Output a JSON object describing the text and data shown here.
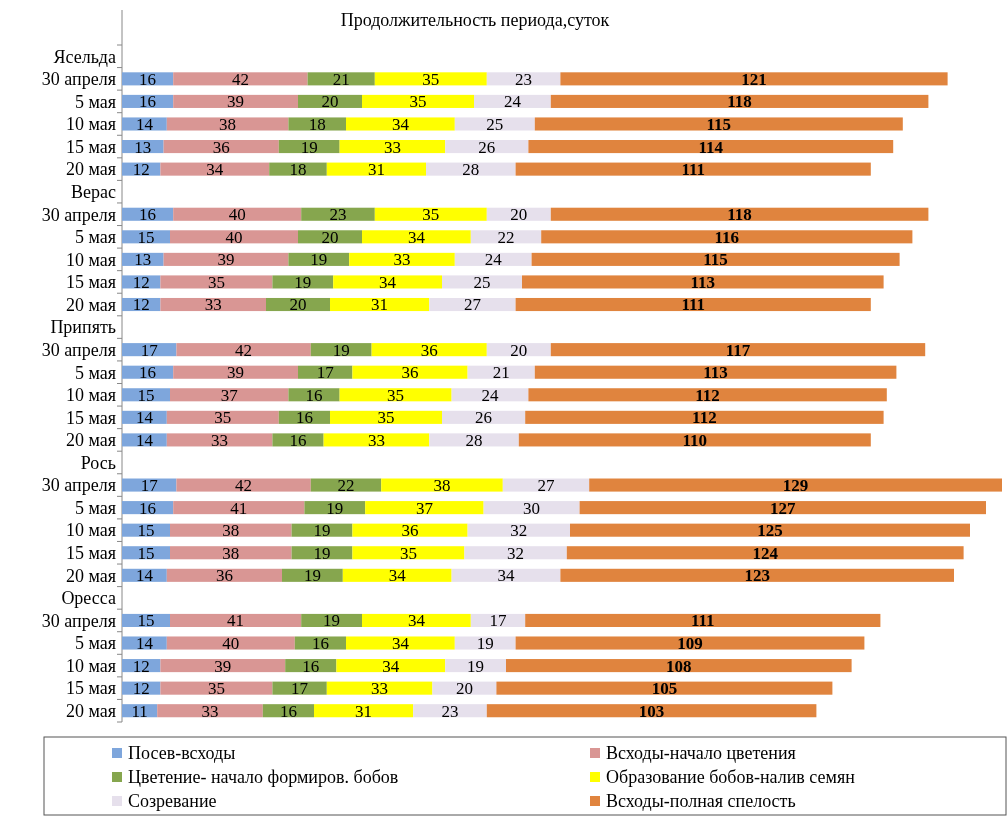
{
  "chart_data": {
    "type": "bar",
    "orientation": "horizontal",
    "stacked": true,
    "data_labels": true,
    "legend": "bottom",
    "title": "Продолжительность периода,суток",
    "categories": [
      "Ясельда",
      "30 апреля",
      "5 мая",
      "10 мая",
      "15 мая",
      "20 мая",
      "Верас",
      "30 апреля",
      "5 мая",
      "10 мая",
      "15 мая",
      "20 мая",
      "Припять",
      "30 апреля",
      "5 мая",
      "10 мая",
      "15 мая",
      "20 мая",
      "Рось",
      "30 апреля",
      "5 мая",
      "10 мая",
      "15 мая",
      "20 мая",
      "Оресса",
      "30 апреля",
      "5 мая",
      "10 мая",
      "15 мая",
      "20 мая"
    ],
    "series": [
      {
        "name": "Посев-всходы",
        "color": "#7ea6dc",
        "values": [
          null,
          16,
          16,
          14,
          13,
          12,
          null,
          16,
          15,
          13,
          12,
          12,
          null,
          17,
          16,
          15,
          14,
          14,
          null,
          17,
          16,
          15,
          15,
          14,
          null,
          15,
          14,
          12,
          12,
          11
        ]
      },
      {
        "name": "Всходы-начало цветения",
        "color": "#d99694",
        "values": [
          null,
          42,
          39,
          38,
          36,
          34,
          null,
          40,
          40,
          39,
          35,
          33,
          null,
          42,
          39,
          37,
          35,
          33,
          null,
          42,
          41,
          38,
          38,
          36,
          null,
          41,
          40,
          39,
          35,
          33
        ]
      },
      {
        "name": "Цветение-  начало формиров. бобов",
        "color": "#86a64e",
        "values": [
          null,
          21,
          20,
          18,
          19,
          18,
          null,
          23,
          20,
          19,
          19,
          20,
          null,
          19,
          17,
          16,
          16,
          16,
          null,
          22,
          19,
          19,
          19,
          19,
          null,
          19,
          16,
          16,
          17,
          16
        ]
      },
      {
        "name": "Образование бобов-налив семян",
        "color": "#ffff00",
        "values": [
          null,
          35,
          35,
          34,
          33,
          31,
          null,
          35,
          34,
          33,
          34,
          31,
          null,
          36,
          36,
          35,
          35,
          33,
          null,
          38,
          37,
          36,
          35,
          34,
          null,
          34,
          34,
          34,
          33,
          31
        ]
      },
      {
        "name": "Созревание",
        "color": "#e6e0ec",
        "values": [
          null,
          23,
          24,
          25,
          26,
          28,
          null,
          20,
          22,
          24,
          25,
          27,
          null,
          20,
          21,
          24,
          26,
          28,
          null,
          27,
          30,
          32,
          32,
          34,
          null,
          17,
          19,
          19,
          20,
          23
        ]
      },
      {
        "name": "Всходы-полная спелость",
        "color": "#e0843e",
        "values": [
          null,
          121,
          118,
          115,
          114,
          111,
          null,
          118,
          116,
          115,
          113,
          111,
          null,
          117,
          113,
          112,
          112,
          110,
          null,
          129,
          127,
          125,
          124,
          123,
          null,
          111,
          109,
          108,
          105,
          103
        ]
      }
    ]
  }
}
